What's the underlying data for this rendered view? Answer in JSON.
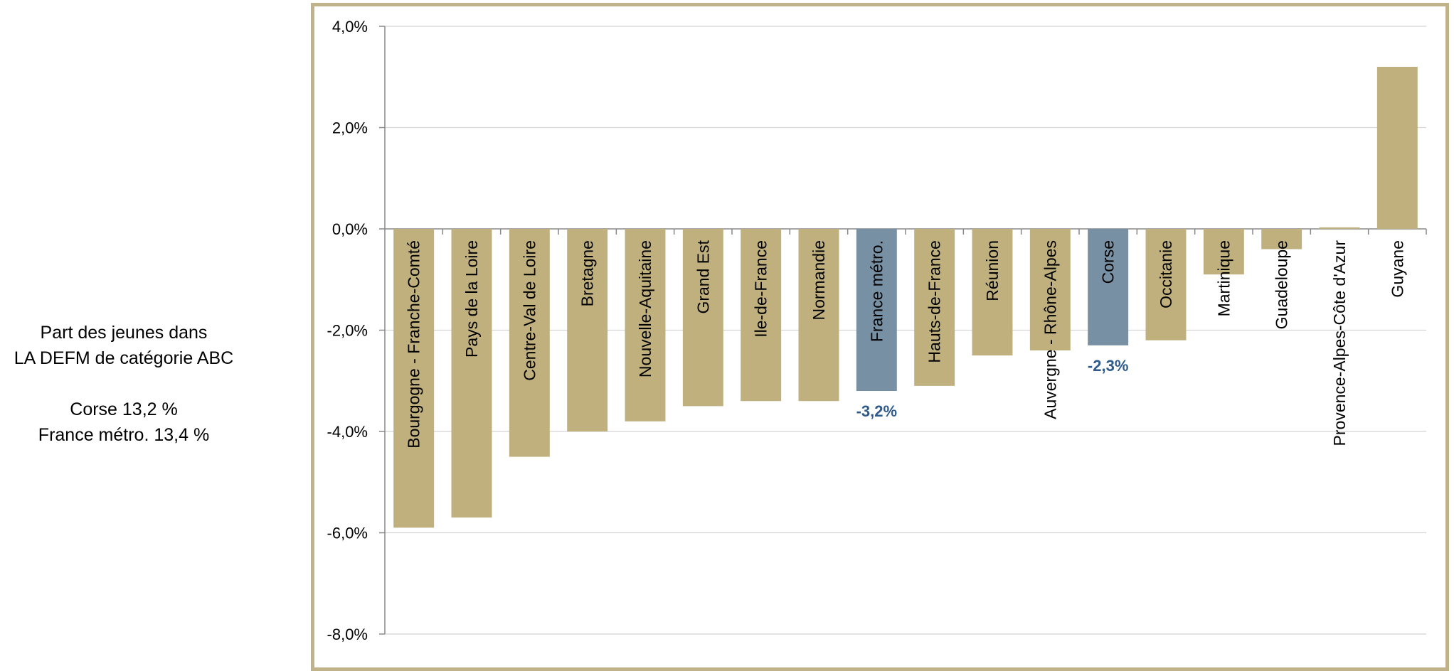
{
  "side_note": {
    "line1": "Part des jeunes dans",
    "line2": "LA DEFM de catégorie ABC",
    "line3": "Corse 13,2 %",
    "line4": "France métro. 13,4 %"
  },
  "colors": {
    "bar": "#bfb07e",
    "highlight": "#7890a3",
    "label": "#2f5b8c",
    "frame": "#c1b389"
  },
  "chart_data": {
    "type": "bar",
    "ylim": [
      -8,
      4
    ],
    "yticks": [
      "4,0%",
      "2,0%",
      "0,0%",
      "-2,0%",
      "-4,0%",
      "-6,0%",
      "-8,0%"
    ],
    "ytick_values": [
      4,
      2,
      0,
      -2,
      -4,
      -6,
      -8
    ],
    "grid": true,
    "categories": [
      "Bourgogne - Franche-Comté",
      "Pays de la Loire",
      "Centre-Val de Loire",
      "Bretagne",
      "Nouvelle-Aquitaine",
      "Grand Est",
      "Ile-de-France",
      "Normandie",
      "France métro.",
      "Hauts-de-France",
      "Réunion",
      "Auvergne - Rhône-Alpes",
      "Corse",
      "Occitanie",
      "Martinique",
      "Guadeloupe",
      "Provence-Alpes-Côte d'Azur",
      "Guyane"
    ],
    "values": [
      -5.9,
      -5.7,
      -4.5,
      -4.0,
      -3.8,
      -3.5,
      -3.4,
      -3.4,
      -3.2,
      -3.1,
      -2.5,
      -2.4,
      -2.3,
      -2.2,
      -0.9,
      -0.4,
      0.03,
      3.2
    ],
    "highlighted": [
      "France métro.",
      "Corse"
    ],
    "data_labels": [
      {
        "category": "France métro.",
        "text": "-3,2%"
      },
      {
        "category": "Corse",
        "text": "-2,3%"
      }
    ]
  }
}
